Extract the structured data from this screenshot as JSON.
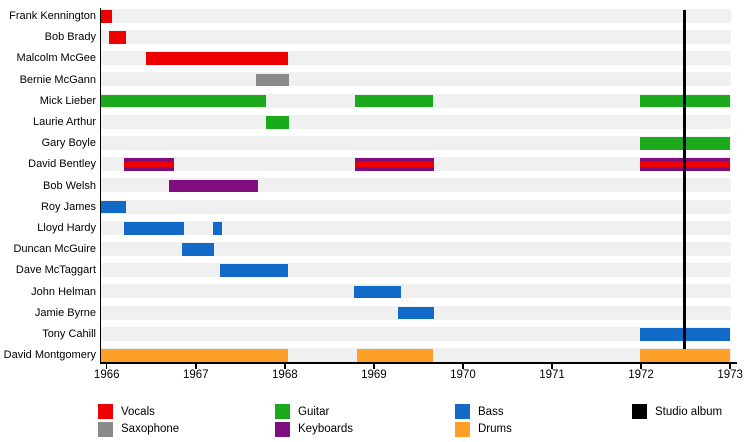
{
  "chart_data": {
    "type": "timeline",
    "description": "Band membership timeline with instrument roles per member and a studio album marker",
    "x_axis": {
      "start": 1965.93,
      "end": 1973.01,
      "ticks": [
        "1966",
        "1967",
        "1968",
        "1969",
        "1970",
        "1971",
        "1972",
        "1973"
      ],
      "tick_years": [
        1966,
        1967,
        1968,
        1969,
        1970,
        1971,
        1972,
        1973
      ]
    },
    "roles": {
      "vocals": "#ee0000",
      "saxophone": "#8a8a8a",
      "guitar": "#1baa1b",
      "keyboards": "#7e0d7e",
      "bass": "#1169c8",
      "drums": "#fca028",
      "studio_album": "#000000"
    },
    "members": [
      {
        "name": "Frank Kennington",
        "segments": [
          {
            "role": "vocals",
            "start": 1965.93,
            "end": 1966.06
          }
        ]
      },
      {
        "name": "Bob Brady",
        "segments": [
          {
            "role": "vocals",
            "start": 1966.03,
            "end": 1966.22
          }
        ]
      },
      {
        "name": "Malcolm McGee",
        "segments": [
          {
            "role": "vocals",
            "start": 1966.44,
            "end": 1968.04
          }
        ]
      },
      {
        "name": "Bernie McGann",
        "segments": [
          {
            "role": "saxophone",
            "start": 1967.68,
            "end": 1968.05
          }
        ]
      },
      {
        "name": "Mick Lieber",
        "segments": [
          {
            "role": "guitar",
            "start": 1965.93,
            "end": 1967.79
          },
          {
            "role": "guitar",
            "start": 1968.79,
            "end": 1969.66
          },
          {
            "role": "guitar",
            "start": 1971.99,
            "end": 1973.0
          }
        ]
      },
      {
        "name": "Laurie Arthur",
        "segments": [
          {
            "role": "guitar",
            "start": 1967.79,
            "end": 1968.05
          }
        ]
      },
      {
        "name": "Gary Boyle",
        "segments": [
          {
            "role": "guitar",
            "start": 1971.99,
            "end": 1973.0
          }
        ]
      },
      {
        "name": "David Bentley",
        "segments": [
          {
            "role": "keyboards+vocals",
            "start": 1966.19,
            "end": 1966.76
          },
          {
            "role": "keyboards+vocals",
            "start": 1968.79,
            "end": 1969.68
          },
          {
            "role": "keyboards+vocals",
            "start": 1971.99,
            "end": 1973.0
          }
        ]
      },
      {
        "name": "Bob Welsh",
        "segments": [
          {
            "role": "keyboards",
            "start": 1966.7,
            "end": 1967.7
          }
        ]
      },
      {
        "name": "Roy James",
        "segments": [
          {
            "role": "bass",
            "start": 1965.93,
            "end": 1966.22
          }
        ]
      },
      {
        "name": "Lloyd Hardy",
        "segments": [
          {
            "role": "bass",
            "start": 1966.19,
            "end": 1966.87
          },
          {
            "role": "bass",
            "start": 1967.19,
            "end": 1967.29
          }
        ]
      },
      {
        "name": "Duncan McGuire",
        "segments": [
          {
            "role": "bass",
            "start": 1966.85,
            "end": 1967.21
          }
        ]
      },
      {
        "name": "Dave McTaggart",
        "segments": [
          {
            "role": "bass",
            "start": 1967.27,
            "end": 1968.04
          }
        ]
      },
      {
        "name": "John Helman",
        "segments": [
          {
            "role": "bass",
            "start": 1968.78,
            "end": 1969.3
          }
        ]
      },
      {
        "name": "Jamie Byrne",
        "segments": [
          {
            "role": "bass",
            "start": 1969.27,
            "end": 1969.67
          }
        ]
      },
      {
        "name": "Tony Cahill",
        "segments": [
          {
            "role": "bass",
            "start": 1971.99,
            "end": 1973.0
          }
        ]
      },
      {
        "name": "David Montgomery",
        "segments": [
          {
            "role": "drums",
            "start": 1965.93,
            "end": 1968.04
          },
          {
            "role": "drums",
            "start": 1968.81,
            "end": 1969.66
          },
          {
            "role": "drums",
            "start": 1971.99,
            "end": 1973.0
          }
        ]
      }
    ],
    "events": [
      {
        "label": "Studio album",
        "year": 1972.49
      }
    ],
    "legend": [
      {
        "label": "Vocals",
        "color_key": "vocals"
      },
      {
        "label": "Saxophone",
        "color_key": "saxophone"
      },
      {
        "label": "Guitar",
        "color_key": "guitar"
      },
      {
        "label": "Keyboards",
        "color_key": "keyboards"
      },
      {
        "label": "Bass",
        "color_key": "bass"
      },
      {
        "label": "Drums",
        "color_key": "drums"
      },
      {
        "label": "Studio album",
        "color_key": "studio_album"
      }
    ],
    "layout": {
      "background": "#ffffff",
      "track_color": "#f0f0f0",
      "legend_position": "bottom",
      "grid": false
    }
  }
}
